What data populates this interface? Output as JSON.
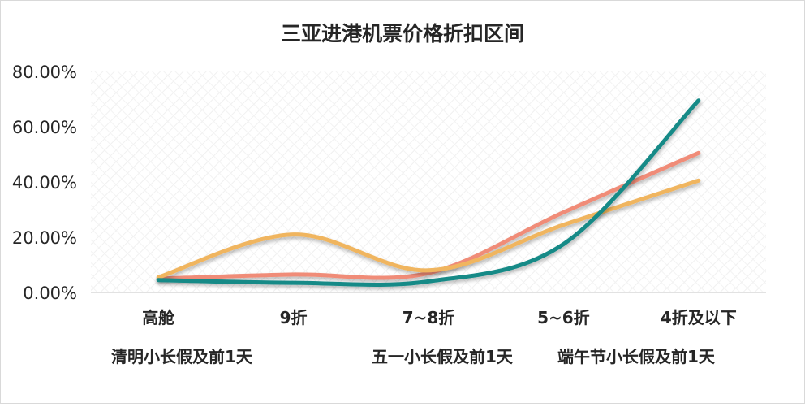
{
  "chart_data": {
    "type": "line",
    "title": "三亚进港机票价格折扣区间",
    "categories": [
      "高舱",
      "9折",
      "7~8折",
      "5~6折",
      "4折及以下"
    ],
    "y_tick_labels": [
      "0.00%",
      "20.00%",
      "40.00%",
      "60.00%",
      "80.00%"
    ],
    "ylim": [
      0,
      0.8
    ],
    "y_format": "percent_2dp",
    "smooth": true,
    "grid": false,
    "legend_position": "bottom",
    "series": [
      {
        "name": "清明小长假及前1天",
        "color": "#F08C78",
        "values": [
          0.05,
          0.065,
          0.07,
          0.29,
          0.505
        ]
      },
      {
        "name": "五一小长假及前1天",
        "color": "#F0B55E",
        "values": [
          0.055,
          0.21,
          0.08,
          0.245,
          0.405
        ]
      },
      {
        "name": "端午节小长假及前1天",
        "color": "#138A87",
        "values": [
          0.045,
          0.035,
          0.04,
          0.175,
          0.695
        ]
      }
    ]
  }
}
